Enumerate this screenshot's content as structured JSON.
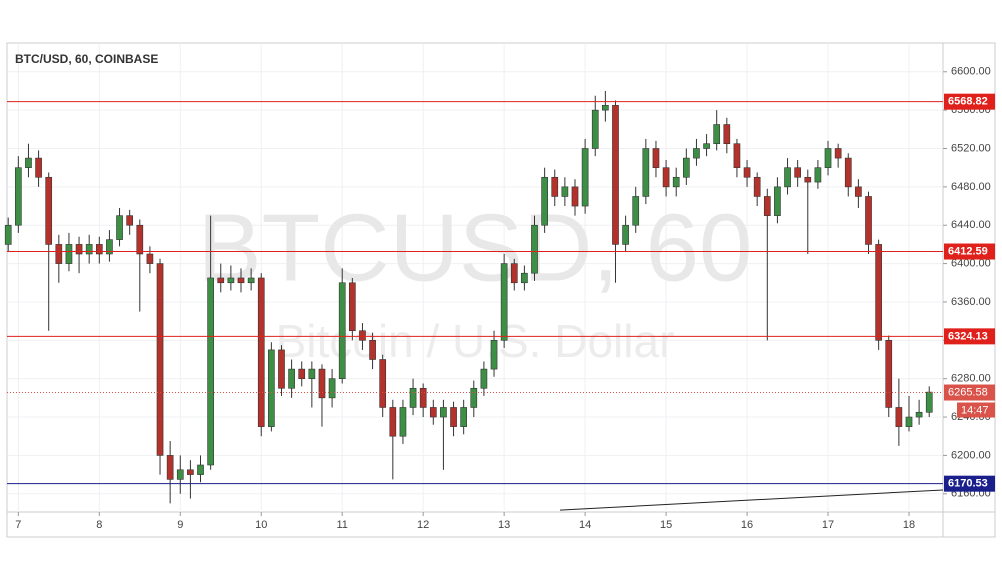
{
  "chart_data": {
    "type": "candlestick",
    "title": "BTC/USD, 60, COINBASE",
    "watermark": "BTCUSD, 60",
    "watermark_subtitle": "Bitcoin / U.S. Dollar",
    "up_color": "#3d8f45",
    "down_color": "#b3322c",
    "x": [
      6.875,
      7,
      7.125,
      7.25,
      7.375,
      7.5,
      7.625,
      7.75,
      7.875,
      8,
      8.125,
      8.25,
      8.375,
      8.5,
      8.625,
      8.75,
      8.875,
      9,
      9.125,
      9.25,
      9.375,
      9.5,
      9.625,
      9.75,
      9.875,
      10,
      10.125,
      10.25,
      10.375,
      10.5,
      10.625,
      10.75,
      10.875,
      11,
      11.125,
      11.25,
      11.375,
      11.5,
      11.625,
      11.75,
      11.875,
      12,
      12.125,
      12.25,
      12.375,
      12.5,
      12.625,
      12.75,
      12.875,
      13,
      13.125,
      13.25,
      13.375,
      13.5,
      13.625,
      13.75,
      13.875,
      14,
      14.125,
      14.25,
      14.375,
      14.5,
      14.625,
      14.75,
      14.875,
      15,
      15.125,
      15.25,
      15.375,
      15.5,
      15.625,
      15.75,
      15.875,
      16,
      16.125,
      16.25,
      16.375,
      16.5,
      16.625,
      16.75,
      16.875,
      17,
      17.125,
      17.25,
      17.375,
      17.5,
      17.625,
      17.75,
      17.875,
      18,
      18.125,
      18.25
    ],
    "open": [
      6420,
      6440,
      6500,
      6510,
      6490,
      6420,
      6400,
      6420,
      6410,
      6420,
      6410,
      6425,
      6450,
      6440,
      6410,
      6400,
      6200,
      6175,
      6185,
      6180,
      6190,
      6385,
      6380,
      6385,
      6380,
      6385,
      6230,
      6310,
      6270,
      6290,
      6280,
      6290,
      6260,
      6280,
      6380,
      6330,
      6320,
      6300,
      6250,
      6220,
      6250,
      6270,
      6250,
      6240,
      6250,
      6230,
      6250,
      6270,
      6290,
      6320,
      6400,
      6380,
      6390,
      6440,
      6490,
      6470,
      6480,
      6460,
      6520,
      6560,
      6565,
      6420,
      6440,
      6470,
      6520,
      6500,
      6480,
      6490,
      6510,
      6520,
      6525,
      6545,
      6525,
      6500,
      6490,
      6470,
      6450,
      6480,
      6500,
      6490,
      6485,
      6500,
      6520,
      6510,
      6480,
      6470,
      6420,
      6320,
      6250,
      6230,
      6240,
      6245
    ],
    "high": [
      6448,
      6512,
      6525,
      6518,
      6495,
      6430,
      6432,
      6428,
      6430,
      6428,
      6435,
      6458,
      6456,
      6446,
      6418,
      6405,
      6215,
      6200,
      6195,
      6200,
      6450,
      6400,
      6398,
      6395,
      6395,
      6390,
      6318,
      6315,
      6300,
      6298,
      6298,
      6295,
      6290,
      6395,
      6385,
      6338,
      6328,
      6305,
      6258,
      6258,
      6280,
      6275,
      6258,
      6258,
      6256,
      6258,
      6278,
      6298,
      6330,
      6410,
      6405,
      6398,
      6450,
      6500,
      6498,
      6490,
      6488,
      6530,
      6575,
      6580,
      6570,
      6450,
      6480,
      6530,
      6528,
      6508,
      6500,
      6520,
      6530,
      6535,
      6560,
      6552,
      6530,
      6508,
      6495,
      6478,
      6490,
      6510,
      6508,
      6498,
      6508,
      6528,
      6525,
      6515,
      6488,
      6475,
      6425,
      6325,
      6280,
      6262,
      6258,
      6272
    ],
    "low": [
      6412,
      6432,
      6490,
      6480,
      6330,
      6380,
      6392,
      6390,
      6400,
      6400,
      6402,
      6418,
      6430,
      6350,
      6390,
      6180,
      6150,
      6160,
      6155,
      6172,
      6185,
      6370,
      6372,
      6370,
      6372,
      6220,
      6225,
      6262,
      6260,
      6272,
      6250,
      6230,
      6250,
      6275,
      6320,
      6310,
      6290,
      6240,
      6175,
      6212,
      6242,
      6240,
      6232,
      6185,
      6220,
      6222,
      6240,
      6262,
      6282,
      6312,
      6372,
      6372,
      6382,
      6432,
      6460,
      6460,
      6450,
      6452,
      6512,
      6548,
      6380,
      6412,
      6432,
      6462,
      6490,
      6470,
      6470,
      6482,
      6502,
      6512,
      6518,
      6515,
      6490,
      6480,
      6460,
      6320,
      6442,
      6472,
      6480,
      6410,
      6478,
      6492,
      6500,
      6470,
      6458,
      6410,
      6310,
      6240,
      6210,
      6225,
      6232,
      6240
    ],
    "close": [
      6440,
      6500,
      6510,
      6490,
      6420,
      6400,
      6420,
      6410,
      6420,
      6410,
      6425,
      6450,
      6440,
      6410,
      6400,
      6200,
      6175,
      6185,
      6180,
      6190,
      6385,
      6380,
      6385,
      6380,
      6385,
      6230,
      6310,
      6270,
      6290,
      6280,
      6290,
      6260,
      6280,
      6380,
      6330,
      6320,
      6300,
      6250,
      6220,
      6250,
      6270,
      6250,
      6240,
      6250,
      6230,
      6250,
      6270,
      6290,
      6320,
      6400,
      6380,
      6390,
      6440,
      6490,
      6470,
      6480,
      6460,
      6520,
      6560,
      6565,
      6420,
      6440,
      6470,
      6520,
      6500,
      6480,
      6490,
      6510,
      6520,
      6525,
      6545,
      6525,
      6500,
      6490,
      6470,
      6450,
      6480,
      6500,
      6490,
      6485,
      6500,
      6520,
      6510,
      6480,
      6470,
      6420,
      6320,
      6250,
      6230,
      6240,
      6245,
      6266
    ],
    "xlim": [
      6.86,
      18.42
    ],
    "xticks": [
      7,
      8,
      9,
      10,
      11,
      12,
      13,
      14,
      15,
      16,
      17,
      18
    ],
    "ylim": [
      6141,
      6630
    ],
    "yticks": [
      {
        "value": 6160,
        "label": "6160.00"
      },
      {
        "value": 6200,
        "label": "6200.00"
      },
      {
        "value": 6240,
        "label": "6240.00"
      },
      {
        "value": 6280,
        "label": "6280.00"
      },
      {
        "value": 6320,
        "label": "6320.00"
      },
      {
        "value": 6360,
        "label": "6360.00"
      },
      {
        "value": 6400,
        "label": "6400.00"
      },
      {
        "value": 6440,
        "label": "6440.00"
      },
      {
        "value": 6480,
        "label": "6480.00"
      },
      {
        "value": 6520,
        "label": "6520.00"
      },
      {
        "value": 6560,
        "label": "6560.00"
      },
      {
        "value": 6600,
        "label": "6600.00"
      }
    ],
    "grid": true,
    "levels": [
      {
        "value": 6568.82,
        "color": "#e0201b"
      },
      {
        "value": 6412.59,
        "color": "#e0201b"
      },
      {
        "value": 6324.13,
        "color": "#e0201b"
      },
      {
        "value": 6170.53,
        "color": "#1a1f8c"
      }
    ],
    "current_price": {
      "value": 6265.58,
      "color": "#d9534a",
      "countdown": "14:47"
    },
    "trendline": {
      "x": [
        13.69,
        18.42
      ],
      "y": [
        6143,
        6164
      ],
      "color": "#222222"
    }
  }
}
